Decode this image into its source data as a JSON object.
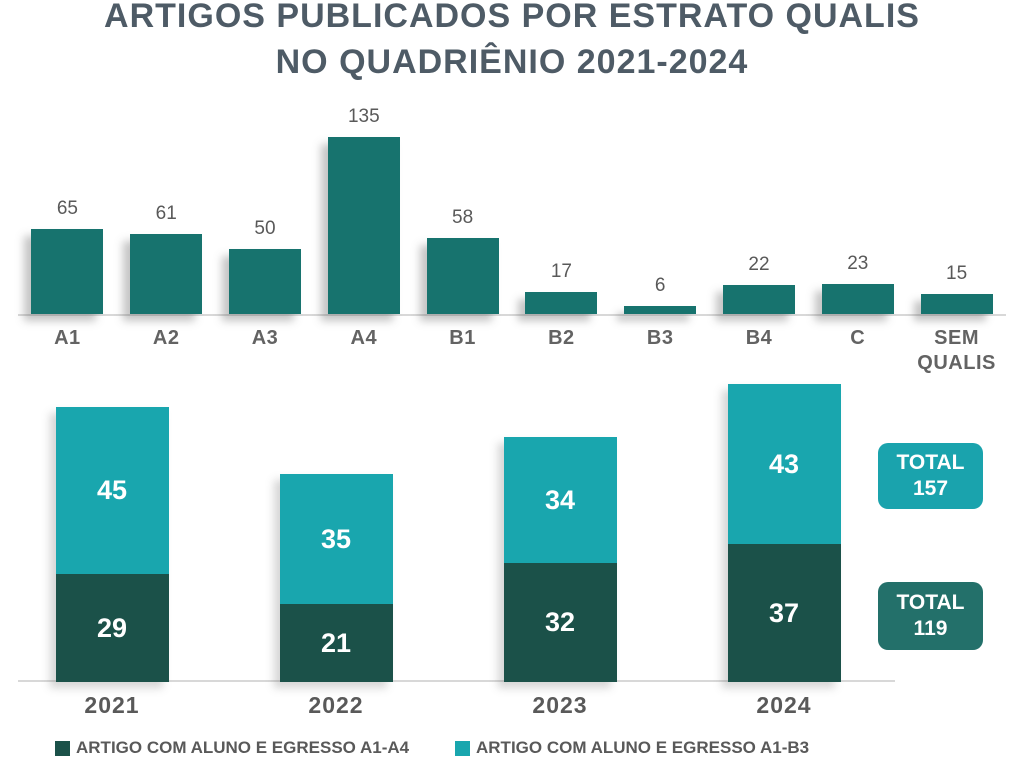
{
  "title": {
    "line1": "ARTIGOS PUBLICADOS POR ESTRATO QUALIS",
    "line2": "NO QUADRIÊNIO 2021-2024"
  },
  "colors": {
    "title_text": "#4E5B66",
    "top_bar": "#17736E",
    "stack_dark": "#1B5149",
    "stack_light": "#19A6AE",
    "total_light_box": "#1AA3AD",
    "total_dark_box": "#23706A",
    "axis_text": "#636363",
    "value_text": "#595959",
    "baseline": "#D8D8D8"
  },
  "chart_data": [
    {
      "type": "bar",
      "title": "ARTIGOS PUBLICADOS POR ESTRATO QUALIS NO QUADRIÊNIO 2021-2024",
      "categories": [
        "A1",
        "A2",
        "A3",
        "A4",
        "B1",
        "B2",
        "B3",
        "B4",
        "C",
        "SEM QUALIS"
      ],
      "values": [
        65,
        61,
        50,
        135,
        58,
        17,
        6,
        22,
        23,
        15
      ],
      "xlabel": "",
      "ylabel": "",
      "ylim": [
        0,
        140
      ],
      "grid": false,
      "data_labels": true,
      "bar_color": "#17736E"
    },
    {
      "type": "bar",
      "subtype": "stacked",
      "categories": [
        "2021",
        "2022",
        "2023",
        "2024"
      ],
      "series": [
        {
          "name": "ARTIGO COM ALUNO E EGRESSO A1-A4",
          "color": "#1B5149",
          "values": [
            29,
            21,
            32,
            37
          ]
        },
        {
          "name": "ARTIGO COM ALUNO E EGRESSO A1-B3",
          "color": "#19A6AE",
          "values": [
            45,
            35,
            34,
            43
          ]
        }
      ],
      "totals": [
        {
          "label": "TOTAL",
          "value": "157",
          "color": "#1AA3AD",
          "series": "ARTIGO COM ALUNO E EGRESSO A1-B3"
        },
        {
          "label": "TOTAL",
          "value": "119",
          "color": "#23706A",
          "series": "ARTIGO COM ALUNO E EGRESSO A1-A4"
        }
      ],
      "xlabel": "",
      "ylabel": "",
      "grid": false,
      "data_labels": true,
      "legend_position": "bottom"
    }
  ]
}
